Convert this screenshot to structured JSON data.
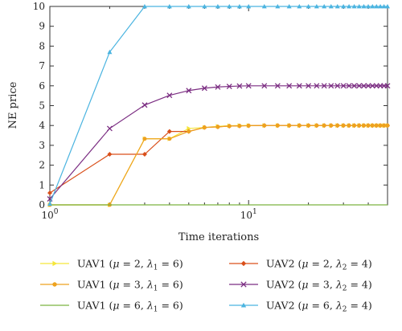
{
  "chart_data": {
    "type": "line",
    "xscale": "log",
    "xlabel": "Time iterations",
    "ylabel": "NE price",
    "xlim": [
      1,
      50
    ],
    "ylim": [
      0,
      10
    ],
    "yticks": [
      0,
      1,
      2,
      3,
      4,
      5,
      6,
      7,
      8,
      9,
      10
    ],
    "xticks": [
      {
        "value": 1,
        "base": "10",
        "exp": "0"
      },
      {
        "value": 10,
        "base": "10",
        "exp": "1"
      }
    ],
    "grid": false,
    "legend_position": "below",
    "series": [
      {
        "name": "UAV1 (μ = 2, λ1 = 6)",
        "label": {
          "pre": "UAV1 (",
          "mu": "μ",
          "mid": " = 2, ",
          "lam": "λ",
          "sub": "1",
          "post": " = 6)"
        },
        "color": "#f5e63a",
        "marker": "triangle-right",
        "points": [
          [
            1,
            0
          ],
          [
            2,
            0
          ],
          [
            3,
            3.33
          ],
          [
            4,
            3.33
          ],
          [
            5,
            3.85
          ],
          [
            6,
            3.9
          ],
          [
            7,
            3.96
          ],
          [
            8,
            3.99
          ],
          [
            9,
            4
          ],
          [
            10,
            4
          ],
          [
            12,
            4
          ],
          [
            14,
            4
          ],
          [
            16,
            4
          ],
          [
            18,
            4
          ],
          [
            20,
            4
          ],
          [
            22,
            4
          ],
          [
            24,
            4
          ],
          [
            26,
            4
          ],
          [
            28,
            4
          ],
          [
            30,
            4
          ],
          [
            32,
            4
          ],
          [
            34,
            4
          ],
          [
            36,
            4
          ],
          [
            38,
            4
          ],
          [
            40,
            4
          ],
          [
            42,
            4
          ],
          [
            44,
            4
          ],
          [
            46,
            4
          ],
          [
            48,
            4
          ],
          [
            50,
            4
          ]
        ]
      },
      {
        "name": "UAV2 (μ = 2, λ2 = 4)",
        "label": {
          "pre": "UAV2 (",
          "mu": "μ",
          "mid": " = 2, ",
          "lam": "λ",
          "sub": "2",
          "post": " = 4)"
        },
        "color": "#d94f1a",
        "marker": "diamond",
        "points": [
          [
            1,
            0.6
          ],
          [
            2,
            2.55
          ],
          [
            3,
            2.55
          ],
          [
            4,
            3.7
          ],
          [
            5,
            3.7
          ],
          [
            6,
            3.9
          ],
          [
            7,
            3.93
          ],
          [
            8,
            3.97
          ],
          [
            9,
            3.98
          ],
          [
            10,
            3.99
          ],
          [
            12,
            4
          ],
          [
            14,
            4
          ],
          [
            16,
            4
          ],
          [
            18,
            4
          ],
          [
            20,
            4
          ],
          [
            22,
            4
          ],
          [
            24,
            4
          ],
          [
            26,
            4
          ],
          [
            28,
            4
          ],
          [
            30,
            4
          ],
          [
            32,
            4
          ],
          [
            34,
            4
          ],
          [
            36,
            4
          ],
          [
            38,
            4
          ],
          [
            40,
            4
          ],
          [
            42,
            4
          ],
          [
            44,
            4
          ],
          [
            46,
            4
          ],
          [
            48,
            4
          ],
          [
            50,
            4
          ]
        ]
      },
      {
        "name": "UAV1 (μ = 3, λ1 = 6)",
        "label": {
          "pre": "UAV1 (",
          "mu": "μ",
          "mid": " = 3, ",
          "lam": "λ",
          "sub": "1",
          "post": " = 6)"
        },
        "color": "#eea21e",
        "marker": "circle",
        "points": [
          [
            1,
            0
          ],
          [
            2,
            0
          ],
          [
            3,
            3.33
          ],
          [
            4,
            3.33
          ],
          [
            5,
            3.7
          ],
          [
            6,
            3.9
          ],
          [
            7,
            3.93
          ],
          [
            8,
            3.97
          ],
          [
            9,
            3.98
          ],
          [
            10,
            3.99
          ],
          [
            12,
            4
          ],
          [
            14,
            4
          ],
          [
            16,
            4
          ],
          [
            18,
            4
          ],
          [
            20,
            4
          ],
          [
            22,
            4
          ],
          [
            24,
            4
          ],
          [
            26,
            4
          ],
          [
            28,
            4
          ],
          [
            30,
            4
          ],
          [
            32,
            4
          ],
          [
            34,
            4
          ],
          [
            36,
            4
          ],
          [
            38,
            4
          ],
          [
            40,
            4
          ],
          [
            42,
            4
          ],
          [
            44,
            4
          ],
          [
            46,
            4
          ],
          [
            48,
            4
          ],
          [
            50,
            4
          ]
        ]
      },
      {
        "name": "UAV2 (μ = 3, λ2 = 4)",
        "label": {
          "pre": "UAV2 (",
          "mu": "μ",
          "mid": " = 3, ",
          "lam": "λ",
          "sub": "2",
          "post": " = 4)"
        },
        "color": "#7b2d82",
        "marker": "x",
        "points": [
          [
            1,
            0.3
          ],
          [
            2,
            3.85
          ],
          [
            3,
            5.03
          ],
          [
            4,
            5.52
          ],
          [
            5,
            5.76
          ],
          [
            6,
            5.88
          ],
          [
            7,
            5.94
          ],
          [
            8,
            5.97
          ],
          [
            9,
            5.99
          ],
          [
            10,
            6
          ],
          [
            12,
            6
          ],
          [
            14,
            6
          ],
          [
            16,
            6
          ],
          [
            18,
            6
          ],
          [
            20,
            6
          ],
          [
            22,
            6
          ],
          [
            24,
            6
          ],
          [
            26,
            6
          ],
          [
            28,
            6
          ],
          [
            30,
            6
          ],
          [
            32,
            6
          ],
          [
            34,
            6
          ],
          [
            36,
            6
          ],
          [
            38,
            6
          ],
          [
            40,
            6
          ],
          [
            42,
            6
          ],
          [
            44,
            6
          ],
          [
            46,
            6
          ],
          [
            48,
            6
          ],
          [
            50,
            6
          ]
        ]
      },
      {
        "name": "UAV1 (μ = 6, λ1 = 6)",
        "label": {
          "pre": "UAV1 (",
          "mu": "μ",
          "mid": " = 6, ",
          "lam": "λ",
          "sub": "1",
          "post": " = 6)"
        },
        "color": "#7cb342",
        "marker": "none",
        "points": [
          [
            1,
            0
          ],
          [
            2,
            0
          ],
          [
            3,
            0
          ],
          [
            4,
            0
          ],
          [
            5,
            0
          ],
          [
            10,
            0
          ],
          [
            20,
            0
          ],
          [
            50,
            0
          ]
        ]
      },
      {
        "name": "UAV2 (μ = 6, λ2 = 4)",
        "label": {
          "pre": "UAV2 (",
          "mu": "μ",
          "mid": " = 6, ",
          "lam": "λ",
          "sub": "2",
          "post": " = 4)"
        },
        "color": "#4bb4e0",
        "marker": "triangle-up",
        "points": [
          [
            1,
            0.05
          ],
          [
            2,
            7.7
          ],
          [
            3,
            10
          ],
          [
            4,
            10
          ],
          [
            5,
            10
          ],
          [
            6,
            10
          ],
          [
            7,
            10
          ],
          [
            8,
            10
          ],
          [
            9,
            10
          ],
          [
            10,
            10
          ],
          [
            12,
            10
          ],
          [
            14,
            10
          ],
          [
            16,
            10
          ],
          [
            18,
            10
          ],
          [
            20,
            10
          ],
          [
            22,
            10
          ],
          [
            24,
            10
          ],
          [
            26,
            10
          ],
          [
            28,
            10
          ],
          [
            30,
            10
          ],
          [
            32,
            10
          ],
          [
            34,
            10
          ],
          [
            36,
            10
          ],
          [
            38,
            10
          ],
          [
            40,
            10
          ],
          [
            42,
            10
          ],
          [
            44,
            10
          ],
          [
            46,
            10
          ],
          [
            48,
            10
          ],
          [
            50,
            10
          ]
        ]
      }
    ]
  }
}
